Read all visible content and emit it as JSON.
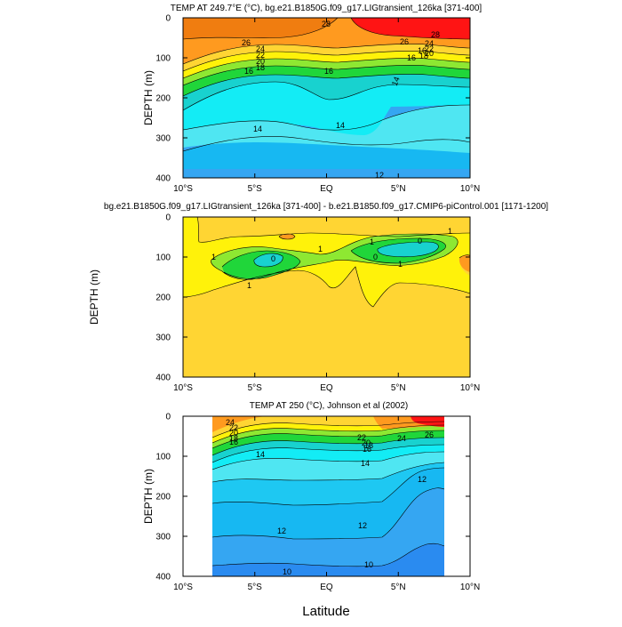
{
  "xlabel": "Latitude",
  "colors": {
    "deep_blue": "#2a8bf0",
    "blue": "#35a6f2",
    "sky": "#17b8f2",
    "cyan": "#13ecf5",
    "aqua": "#4fe6f2",
    "teal": "#18d2cf",
    "green": "#20d63a",
    "lime": "#8ee832",
    "yellow": "#fff20a",
    "gold": "#ffd533",
    "orange": "#ff9a1f",
    "dark_orange": "#f07d10",
    "red": "#ff1414"
  },
  "chart_data": [
    {
      "type": "contour",
      "title": "TEMP AT 249.7°E (°C), bg.e21.B1850G.f09_g17.LIGtransient_126ka [371-400]",
      "ylabel": "DEPTH (m)",
      "xlim": [
        -10,
        10
      ],
      "ylim": [
        400,
        0
      ],
      "x_ticks": [
        "10°S",
        "5°S",
        "EQ",
        "5°N",
        "10°N"
      ],
      "y_ticks": [
        "0",
        "100",
        "200",
        "300",
        "400"
      ],
      "contour_labels": [
        "26",
        "28",
        "26",
        "24",
        "22",
        "20",
        "18",
        "16",
        "16",
        "16",
        "14",
        "14",
        "14",
        "28",
        "24",
        "22",
        "20",
        "18",
        "16",
        "12"
      ]
    },
    {
      "type": "contour",
      "title": "bg.e21.B1850G.f09_g17.LIGtransient_126ka [371-400] - b.e21.B1850.f09_g17.CMIP6-piControl.001 [1171-1200]",
      "ylabel": "DEPTH (m)",
      "xlim": [
        -10,
        10
      ],
      "ylim": [
        400,
        0
      ],
      "x_ticks": [
        "10°S",
        "5°S",
        "EQ",
        "5°N",
        "10°N"
      ],
      "y_ticks": [
        "0",
        "100",
        "200",
        "300",
        "400"
      ],
      "contour_labels": [
        "1",
        "0",
        "1",
        "1",
        "1",
        "0",
        "0",
        "1",
        "1"
      ]
    },
    {
      "type": "contour",
      "title": "TEMP AT 250 (°C), Johnson et al (2002)",
      "ylabel": "DEPTH (m)",
      "xlim": [
        -10,
        10
      ],
      "ylim": [
        400,
        0
      ],
      "data_x_range": [
        -8,
        8.2
      ],
      "x_ticks": [
        "10°S",
        "5°S",
        "EQ",
        "5°N",
        "10°N"
      ],
      "y_ticks": [
        "0",
        "100",
        "200",
        "300",
        "400"
      ],
      "contour_labels": [
        "24",
        "22",
        "20",
        "18",
        "16",
        "14",
        "14",
        "22",
        "20",
        "18",
        "16",
        "24",
        "26",
        "12",
        "12",
        "12",
        "10",
        "10"
      ]
    }
  ]
}
